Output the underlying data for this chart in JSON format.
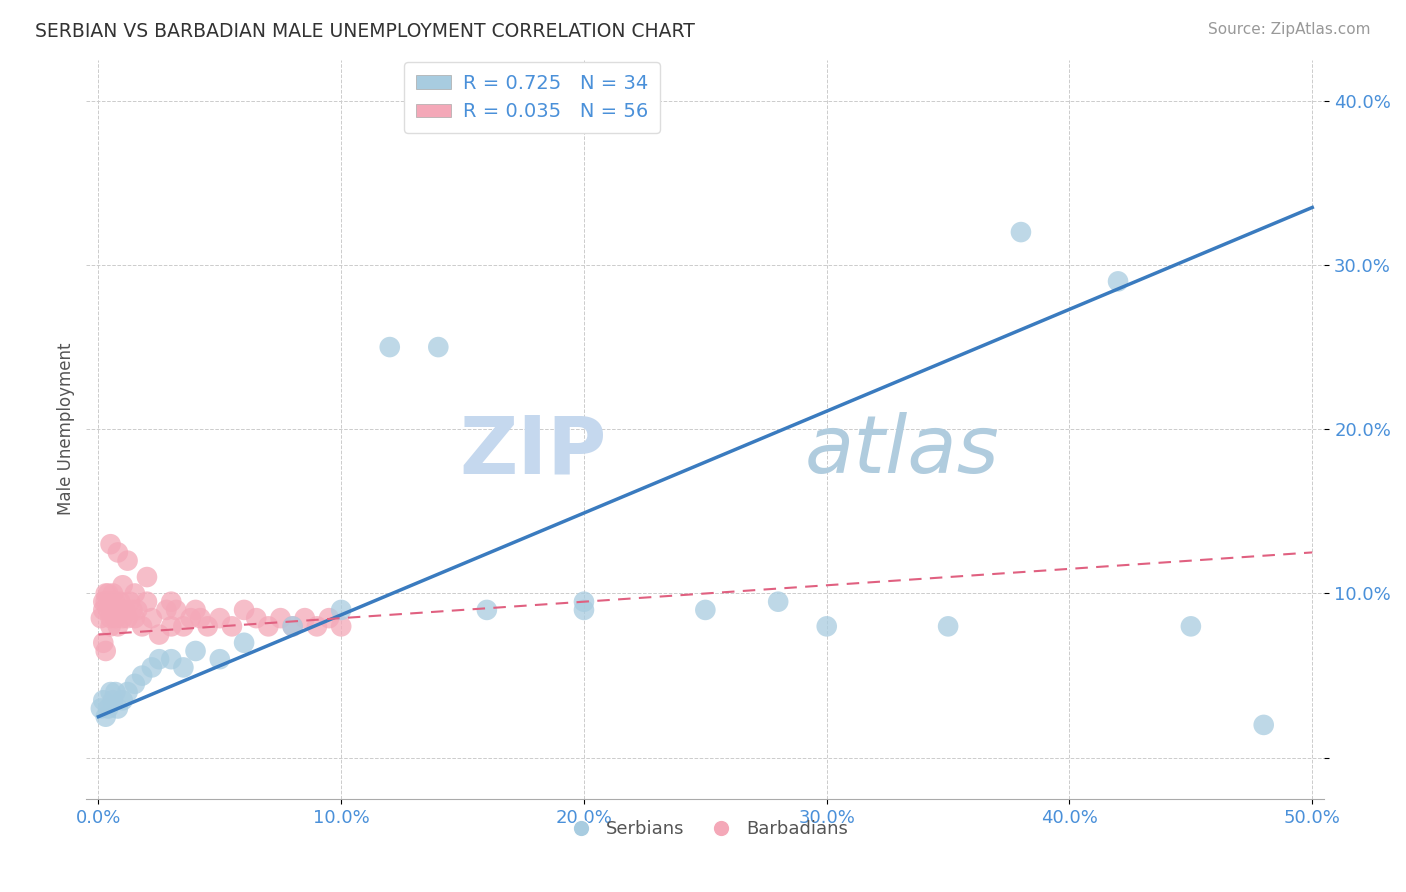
{
  "title": "SERBIAN VS BARBADIAN MALE UNEMPLOYMENT CORRELATION CHART",
  "source": "Source: ZipAtlas.com",
  "ylabel": "Male Unemployment",
  "xlim": [
    -0.005,
    0.505
  ],
  "ylim": [
    -0.025,
    0.425
  ],
  "xticks": [
    0.0,
    0.1,
    0.2,
    0.3,
    0.4,
    0.5
  ],
  "xticklabels": [
    "0.0%",
    "10.0%",
    "20.0%",
    "30.0%",
    "40.0%",
    "50.0%"
  ],
  "yticks": [
    0.0,
    0.1,
    0.2,
    0.3,
    0.4
  ],
  "yticklabels": [
    "",
    "10.0%",
    "20.0%",
    "30.0%",
    "40.0%"
  ],
  "serbian_color": "#a8cce0",
  "barbadian_color": "#f4a8b8",
  "trend_serbian_color": "#3a7bbf",
  "trend_barbadian_color": "#e06080",
  "watermark_zip": "ZIP",
  "watermark_atlas": "atlas",
  "watermark_color_zip": "#c5d8ee",
  "watermark_color_atlas": "#b0ccde",
  "legend_r_serbian": "R = 0.725",
  "legend_n_serbian": "N = 34",
  "legend_r_barbadian": "R = 0.035",
  "legend_n_barbadian": "N = 56",
  "trend_serbian_x0": 0.0,
  "trend_serbian_y0": 0.025,
  "trend_serbian_x1": 0.5,
  "trend_serbian_y1": 0.335,
  "trend_barb_x0": 0.0,
  "trend_barb_y0": 0.075,
  "trend_barb_x1": 0.5,
  "trend_barb_y1": 0.125,
  "serbian_x": [
    0.001,
    0.002,
    0.003,
    0.004,
    0.005,
    0.006,
    0.007,
    0.008,
    0.01,
    0.012,
    0.015,
    0.018,
    0.022,
    0.025,
    0.03,
    0.035,
    0.04,
    0.05,
    0.06,
    0.08,
    0.1,
    0.12,
    0.14,
    0.16,
    0.2,
    0.25,
    0.28,
    0.3,
    0.35,
    0.38,
    0.42,
    0.45,
    0.48,
    0.2
  ],
  "serbian_y": [
    0.03,
    0.035,
    0.025,
    0.03,
    0.04,
    0.035,
    0.04,
    0.03,
    0.035,
    0.04,
    0.045,
    0.05,
    0.055,
    0.06,
    0.06,
    0.055,
    0.065,
    0.06,
    0.07,
    0.08,
    0.09,
    0.25,
    0.25,
    0.09,
    0.095,
    0.09,
    0.095,
    0.08,
    0.08,
    0.32,
    0.29,
    0.08,
    0.02,
    0.09
  ],
  "barbadian_x": [
    0.001,
    0.002,
    0.002,
    0.003,
    0.003,
    0.004,
    0.004,
    0.005,
    0.005,
    0.005,
    0.006,
    0.006,
    0.007,
    0.007,
    0.008,
    0.008,
    0.009,
    0.01,
    0.01,
    0.011,
    0.012,
    0.013,
    0.014,
    0.015,
    0.015,
    0.016,
    0.018,
    0.02,
    0.02,
    0.022,
    0.025,
    0.028,
    0.03,
    0.03,
    0.032,
    0.035,
    0.038,
    0.04,
    0.042,
    0.045,
    0.05,
    0.055,
    0.06,
    0.065,
    0.07,
    0.075,
    0.08,
    0.085,
    0.09,
    0.095,
    0.1,
    0.005,
    0.008,
    0.012,
    0.002,
    0.003
  ],
  "barbadian_y": [
    0.085,
    0.09,
    0.095,
    0.1,
    0.095,
    0.09,
    0.1,
    0.085,
    0.08,
    0.095,
    0.09,
    0.1,
    0.085,
    0.095,
    0.09,
    0.08,
    0.095,
    0.085,
    0.105,
    0.09,
    0.085,
    0.095,
    0.09,
    0.085,
    0.1,
    0.09,
    0.08,
    0.095,
    0.11,
    0.085,
    0.075,
    0.09,
    0.095,
    0.08,
    0.09,
    0.08,
    0.085,
    0.09,
    0.085,
    0.08,
    0.085,
    0.08,
    0.09,
    0.085,
    0.08,
    0.085,
    0.08,
    0.085,
    0.08,
    0.085,
    0.08,
    0.13,
    0.125,
    0.12,
    0.07,
    0.065
  ]
}
